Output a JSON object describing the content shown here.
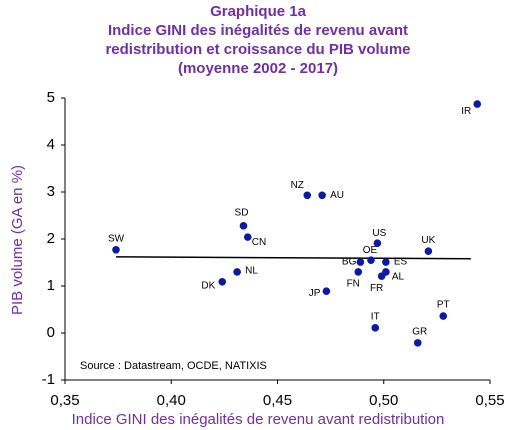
{
  "chart_data": {
    "type": "scatter",
    "title": "Graphique 1a",
    "subtitle": [
      "Indice GINI des inégalités de revenu avant",
      "redistribution et croissance du PIB volume",
      "(moyenne 2002 - 2017)"
    ],
    "x_label": "Indice GINI des inégalités de revenu avant redistribution",
    "y_label": "PIB volume (GA en %)",
    "annotation": "Source : Datastream, OCDE, NATIXIS",
    "labels": [
      "SW",
      "SD",
      "CN",
      "NZ",
      "AU",
      "NL",
      "DK",
      "JP",
      "US",
      "OE",
      "BG",
      "ES",
      "FN",
      "FR",
      "AL",
      "UK",
      "IR",
      "PT",
      "IT",
      "GR"
    ],
    "x": [
      0.374,
      0.434,
      0.436,
      0.464,
      0.471,
      0.431,
      0.424,
      0.473,
      0.497,
      0.494,
      0.489,
      0.501,
      0.488,
      0.499,
      0.501,
      0.521,
      0.544,
      0.528,
      0.496,
      0.516
    ],
    "y": [
      1.77,
      2.28,
      2.04,
      2.93,
      2.93,
      1.3,
      1.09,
      0.89,
      1.91,
      1.55,
      1.51,
      1.51,
      1.3,
      1.21,
      1.3,
      1.74,
      4.87,
      0.36,
      0.11,
      -0.21
    ],
    "color": "#0b1aa0",
    "trendline": {
      "x": [
        0.374,
        0.541
      ],
      "y": [
        1.62,
        1.58
      ],
      "color": "#000000"
    },
    "xlim": [
      0.35,
      0.55
    ],
    "xticks": [
      {
        "value": 0.35,
        "label": "0,35"
      },
      {
        "value": 0.4,
        "label": "0,40"
      },
      {
        "value": 0.45,
        "label": "0,45"
      },
      {
        "value": 0.5,
        "label": "0,50"
      },
      {
        "value": 0.55,
        "label": "0,55"
      }
    ],
    "ylim": [
      -1,
      5
    ],
    "yticks": [
      -1,
      0,
      1,
      2,
      3,
      4,
      5
    ]
  }
}
